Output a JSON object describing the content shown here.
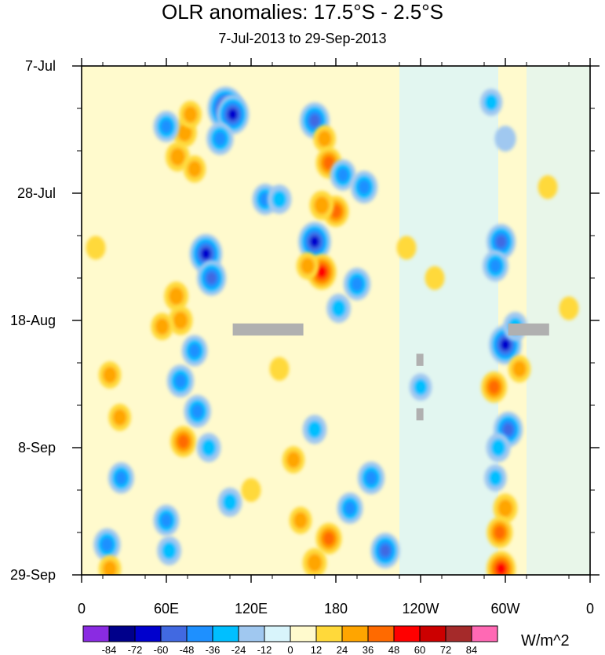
{
  "chart_data": {
    "type": "heatmap",
    "title": "OLR anomalies: 17.5°S - 2.5°S",
    "subtitle": "7-Jul-2013 to 29-Sep-2013",
    "colorbar_units": "W/m^2",
    "x_ticks": [
      "0",
      "60E",
      "120E",
      "180",
      "120W",
      "60W",
      "0"
    ],
    "x_tick_values": [
      0,
      60,
      120,
      180,
      240,
      300,
      360
    ],
    "y_ticks": [
      "7-Jul",
      "28-Jul",
      "18-Aug",
      "8-Sep",
      "29-Sep"
    ],
    "y_tick_values": [
      0,
      21,
      42,
      63,
      84
    ],
    "xlim": [
      0,
      360
    ],
    "ylim_days": [
      0,
      84
    ],
    "colorbar_levels": [
      "-84",
      "-72",
      "-60",
      "-48",
      "-36",
      "-24",
      "-12",
      "0",
      "12",
      "24",
      "36",
      "48",
      "60",
      "72",
      "84"
    ],
    "colorbar_colors": [
      "#8a2be2",
      "#00008b",
      "#0000cd",
      "#4169e1",
      "#1e90ff",
      "#00bfff",
      "#a0c8f0",
      "#d8f4fb",
      "#fffacd",
      "#ffd93a",
      "#ffa500",
      "#ff6a00",
      "#ff0000",
      "#cc0000",
      "#a52a2a",
      "#ff69b4"
    ],
    "missing_data_color": "#b0b0b0",
    "missing_data": [
      {
        "lon": [
          107,
          157
        ],
        "day": [
          42.5,
          44.5
        ]
      },
      {
        "lon": [
          237,
          242
        ],
        "day": [
          47.5,
          49.5
        ]
      },
      {
        "lon": [
          237,
          242
        ],
        "day": [
          56.5,
          58.5
        ]
      },
      {
        "lon": [
          302,
          331
        ],
        "day": [
          42.5,
          44.5
        ]
      }
    ],
    "anomaly_features": [
      {
        "lon": 102,
        "day": 7,
        "value": -72
      },
      {
        "lon": 107,
        "day": 8,
        "value": -60
      },
      {
        "lon": 98,
        "day": 12,
        "value": -40
      },
      {
        "lon": 73,
        "day": 11,
        "value": 30
      },
      {
        "lon": 68,
        "day": 15,
        "value": 30
      },
      {
        "lon": 80,
        "day": 17,
        "value": 24
      },
      {
        "lon": 77,
        "day": 8,
        "value": 24
      },
      {
        "lon": 60,
        "day": 10,
        "value": -36
      },
      {
        "lon": 165,
        "day": 9,
        "value": -50
      },
      {
        "lon": 172,
        "day": 12,
        "value": 24
      },
      {
        "lon": 175,
        "day": 16,
        "value": 36
      },
      {
        "lon": 185,
        "day": 18,
        "value": -36
      },
      {
        "lon": 200,
        "day": 20,
        "value": -40
      },
      {
        "lon": 180,
        "day": 24,
        "value": 36
      },
      {
        "lon": 170,
        "day": 23,
        "value": 30
      },
      {
        "lon": 130,
        "day": 22,
        "value": -36
      },
      {
        "lon": 140,
        "day": 22,
        "value": -30
      },
      {
        "lon": 165,
        "day": 29,
        "value": -60
      },
      {
        "lon": 170,
        "day": 34,
        "value": 48
      },
      {
        "lon": 160,
        "day": 33,
        "value": 24
      },
      {
        "lon": 195,
        "day": 36,
        "value": -40
      },
      {
        "lon": 182,
        "day": 40,
        "value": -30
      },
      {
        "lon": 88,
        "day": 31,
        "value": -60
      },
      {
        "lon": 92,
        "day": 35,
        "value": -48
      },
      {
        "lon": 67,
        "day": 38,
        "value": 30
      },
      {
        "lon": 70,
        "day": 42,
        "value": 30
      },
      {
        "lon": 57,
        "day": 43,
        "value": 24
      },
      {
        "lon": 80,
        "day": 47,
        "value": -36
      },
      {
        "lon": 70,
        "day": 52,
        "value": -40
      },
      {
        "lon": 82,
        "day": 57,
        "value": -40
      },
      {
        "lon": 72,
        "day": 62,
        "value": 36
      },
      {
        "lon": 90,
        "day": 63,
        "value": -30
      },
      {
        "lon": 20,
        "day": 51,
        "value": 24
      },
      {
        "lon": 27,
        "day": 58,
        "value": 24
      },
      {
        "lon": 28,
        "day": 68,
        "value": -36
      },
      {
        "lon": 18,
        "day": 79,
        "value": -40
      },
      {
        "lon": 20,
        "day": 83,
        "value": 24
      },
      {
        "lon": 60,
        "day": 75,
        "value": -36
      },
      {
        "lon": 62,
        "day": 80,
        "value": -30
      },
      {
        "lon": 105,
        "day": 72,
        "value": -30
      },
      {
        "lon": 150,
        "day": 65,
        "value": 24
      },
      {
        "lon": 155,
        "day": 75,
        "value": 24
      },
      {
        "lon": 165,
        "day": 60,
        "value": -30
      },
      {
        "lon": 175,
        "day": 78,
        "value": 36
      },
      {
        "lon": 165,
        "day": 82,
        "value": 30
      },
      {
        "lon": 205,
        "day": 68,
        "value": -40
      },
      {
        "lon": 215,
        "day": 80,
        "value": -48
      },
      {
        "lon": 190,
        "day": 73,
        "value": -36
      },
      {
        "lon": 297,
        "day": 29,
        "value": -48
      },
      {
        "lon": 293,
        "day": 33,
        "value": -36
      },
      {
        "lon": 300,
        "day": 46,
        "value": -60
      },
      {
        "lon": 307,
        "day": 43,
        "value": -30
      },
      {
        "lon": 292,
        "day": 53,
        "value": 36
      },
      {
        "lon": 302,
        "day": 60,
        "value": -48
      },
      {
        "lon": 295,
        "day": 63,
        "value": -30
      },
      {
        "lon": 300,
        "day": 73,
        "value": 30
      },
      {
        "lon": 296,
        "day": 77,
        "value": 36
      },
      {
        "lon": 297,
        "day": 83,
        "value": 48
      },
      {
        "lon": 293,
        "day": 68,
        "value": -24
      },
      {
        "lon": 310,
        "day": 50,
        "value": 24
      },
      {
        "lon": 290,
        "day": 6,
        "value": -24
      },
      {
        "lon": 300,
        "day": 12,
        "value": -20
      },
      {
        "lon": 240,
        "day": 53,
        "value": -24
      },
      {
        "lon": 230,
        "day": 30,
        "value": 14
      },
      {
        "lon": 250,
        "day": 35,
        "value": 14
      },
      {
        "lon": 10,
        "day": 30,
        "value": 14
      },
      {
        "lon": 330,
        "day": 20,
        "value": 14
      },
      {
        "lon": 345,
        "day": 40,
        "value": 14
      },
      {
        "lon": 140,
        "day": 50,
        "value": 14
      },
      {
        "lon": 120,
        "day": 70,
        "value": 14
      }
    ]
  }
}
